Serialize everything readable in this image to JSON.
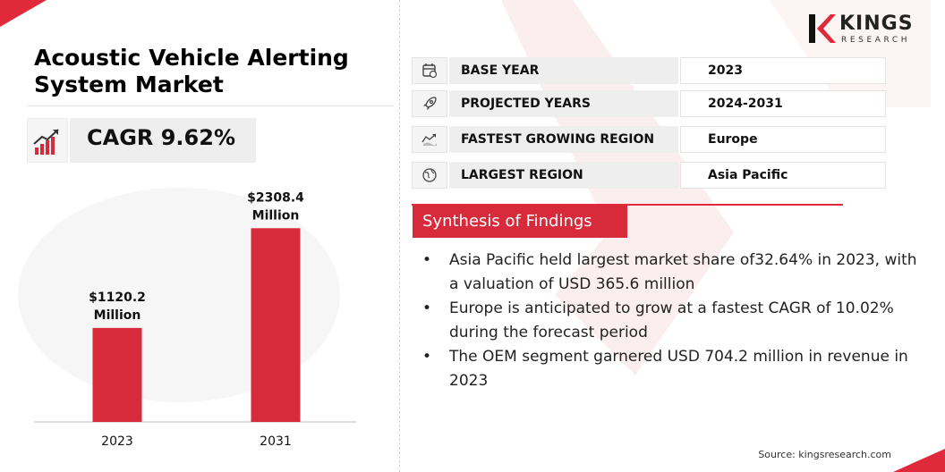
{
  "title": "Acoustic Vehicle Alerting System Market",
  "cagr": "CAGR 9.62%",
  "logo": {
    "name": "KINGS",
    "subtitle": "RESEARCH"
  },
  "info_rows": [
    {
      "label": "BASE YEAR",
      "value": "2023",
      "icon": "calendar-icon"
    },
    {
      "label": "PROJECTED YEARS",
      "value": "2024-2031",
      "icon": "rocket-icon"
    },
    {
      "label": "FASTEST GROWING REGION",
      "value": "Europe",
      "icon": "growth-map-icon"
    },
    {
      "label": "LARGEST REGION",
      "value": "Asia Pacific",
      "icon": "globe-icon"
    }
  ],
  "synthesis": {
    "title": "Synthesis of Findings",
    "bullets": [
      "Asia Pacific held largest market share of32.64% in 2023, with a valuation of USD 365.6 million",
      "Europe is anticipated to grow at a fastest CAGR of 10.02% during the forecast period",
      "The OEM segment garnered USD 704.2 million in revenue in 2023"
    ]
  },
  "source": "Source: kingsresearch.com",
  "colors": {
    "accent": "#d72b3c",
    "bar": "#d72b3c"
  },
  "chart_data": {
    "type": "bar",
    "categories": [
      "2023",
      "2031"
    ],
    "values": [
      1120.2,
      2308.4
    ],
    "data_labels": [
      [
        "$1120.2",
        "Million"
      ],
      [
        "$2308.4",
        "Million"
      ]
    ],
    "ylim": [
      0,
      2450
    ],
    "grid": false,
    "legend": "none"
  }
}
